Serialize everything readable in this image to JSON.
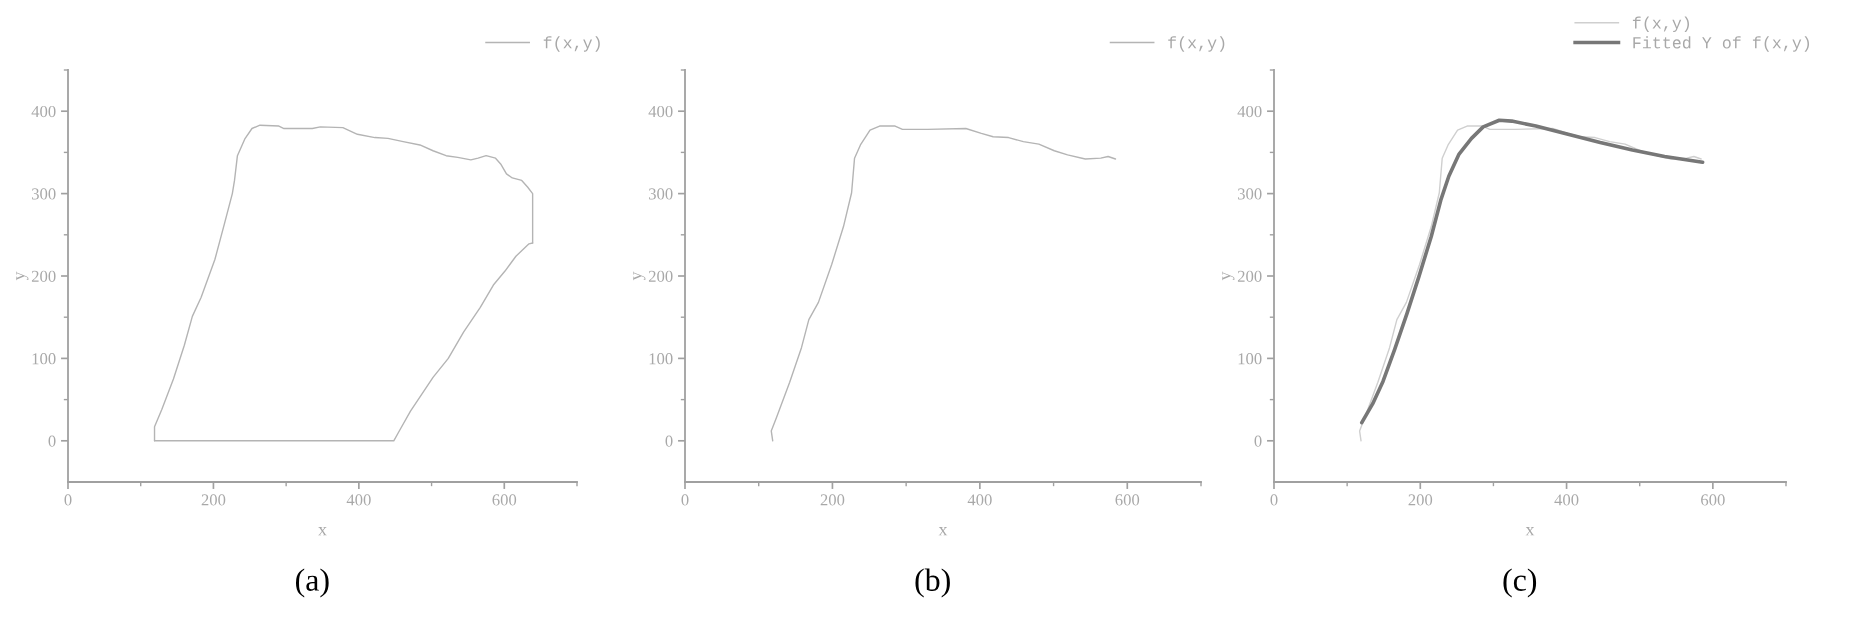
{
  "chart_data": [
    {
      "type": "line",
      "xlabel": "x",
      "ylabel": "y",
      "xlim": [
        0,
        700
      ],
      "ylim": [
        -50,
        450
      ],
      "xticks": [
        0,
        {
          "value": 100,
          "label": null
        },
        200,
        {
          "value": 300,
          "label": null
        },
        400,
        {
          "value": 500,
          "label": null
        },
        600,
        {
          "value": 700,
          "label": null
        }
      ],
      "yticks": [
        0,
        {
          "value": 50,
          "label": null
        },
        100,
        {
          "value": 150,
          "label": null
        },
        200,
        {
          "value": 250,
          "label": null
        },
        300,
        {
          "value": 350,
          "label": null
        },
        400,
        {
          "value": 450,
          "label": null
        }
      ],
      "legend": "top right",
      "annotations": [
        "(a)"
      ],
      "series": [
        {
          "name": "f(x,y)",
          "color": "#b4b4b4",
          "x": [
            119,
            119,
            129,
            145,
            160,
            171,
            183,
            202,
            215,
            226,
            229,
            233,
            243,
            253,
            264,
            290,
            297,
            336,
            347,
            378,
            398,
            422,
            440,
            461,
            484,
            502,
            520,
            536,
            554,
            564,
            575,
            588,
            595,
            603,
            611,
            624,
            632,
            639,
            639
          ],
          "values": [
            0,
            17,
            38,
            75,
            116,
            151,
            174,
            220,
            263,
            300,
            316,
            346,
            366,
            379,
            383,
            382,
            379,
            379,
            381,
            380,
            372,
            368,
            367,
            363,
            359,
            352,
            346,
            344,
            341,
            343,
            346,
            343,
            336,
            324,
            319,
            316,
            308,
            300,
            240
          ]
        },
        {
          "color": "#b4b4b4",
          "x": [
            639,
            634,
            616,
            601,
            585,
            567,
            544,
            523,
            502,
            471,
            455,
            448,
            119
          ],
          "values": [
            240,
            239,
            224,
            206,
            189,
            162,
            132,
            100,
            77,
            36,
            11,
            0,
            0
          ]
        }
      ]
    },
    {
      "type": "line",
      "xlabel": "x",
      "ylabel": "y",
      "xlim": [
        0,
        700
      ],
      "ylim": [
        -50,
        450
      ],
      "xticks": [
        0,
        {
          "value": 100,
          "label": null
        },
        200,
        {
          "value": 300,
          "label": null
        },
        400,
        {
          "value": 500,
          "label": null
        },
        600,
        {
          "value": 700,
          "label": null
        }
      ],
      "yticks": [
        0,
        {
          "value": 50,
          "label": null
        },
        100,
        {
          "value": 150,
          "label": null
        },
        200,
        {
          "value": 250,
          "label": null
        },
        300,
        {
          "value": 350,
          "label": null
        },
        400,
        {
          "value": 450,
          "label": null
        }
      ],
      "legend": "top right",
      "annotations": [
        "(b)"
      ],
      "series": [
        {
          "name": "f(x,y)",
          "color": "#b4b4b4",
          "x": [
            119,
            117,
            124,
            142,
            158,
            168,
            181,
            199,
            215,
            226,
            230,
            238,
            251,
            264,
            285,
            295,
            329,
            381,
            402,
            418,
            439,
            459,
            480,
            501,
            519,
            543,
            564,
            574,
            584
          ],
          "values": [
            0,
            12,
            28,
            71,
            113,
            147,
            168,
            214,
            260,
            301,
            343,
            359,
            377,
            382,
            382,
            378,
            378,
            379,
            373,
            369,
            368,
            363,
            360,
            352,
            347,
            342,
            343,
            345,
            342
          ]
        }
      ]
    },
    {
      "type": "line",
      "xlabel": "x",
      "ylabel": "y",
      "xlim": [
        0,
        700
      ],
      "ylim": [
        -50,
        450
      ],
      "xticks": [
        0,
        {
          "value": 100,
          "label": null
        },
        200,
        {
          "value": 300,
          "label": null
        },
        400,
        {
          "value": 500,
          "label": null
        },
        600,
        {
          "value": 700,
          "label": null
        }
      ],
      "yticks": [
        0,
        {
          "value": 50,
          "label": null
        },
        100,
        {
          "value": 150,
          "label": null
        },
        200,
        {
          "value": 250,
          "label": null
        },
        300,
        {
          "value": 350,
          "label": null
        },
        400,
        {
          "value": 450,
          "label": null
        }
      ],
      "legend": "top right",
      "annotations": [
        "(c)"
      ],
      "series": [
        {
          "name": "f(x,y)",
          "color": "#cfcfcf",
          "x": [
            119,
            117,
            124,
            142,
            158,
            168,
            181,
            199,
            215,
            226,
            230,
            238,
            251,
            264,
            285,
            295,
            329,
            381,
            402,
            418,
            439,
            459,
            480,
            501,
            519,
            543,
            564,
            574,
            584
          ],
          "values": [
            0,
            12,
            28,
            71,
            113,
            147,
            168,
            214,
            260,
            301,
            343,
            359,
            377,
            382,
            382,
            378,
            378,
            379,
            373,
            369,
            368,
            363,
            360,
            352,
            347,
            342,
            343,
            345,
            342
          ]
        },
        {
          "name": "Fitted Y of f(x,y)",
          "color": "#777777",
          "x": [
            120,
            135,
            149,
            165,
            182,
            198,
            215,
            228,
            239,
            253,
            270,
            286,
            308,
            325,
            358,
            402,
            446,
            490,
            534,
            586
          ],
          "values": [
            22,
            45,
            72,
            111,
            155,
            199,
            248,
            292,
            321,
            348,
            367,
            381,
            389,
            388,
            382,
            372,
            362,
            353,
            345,
            338
          ]
        }
      ]
    }
  ]
}
